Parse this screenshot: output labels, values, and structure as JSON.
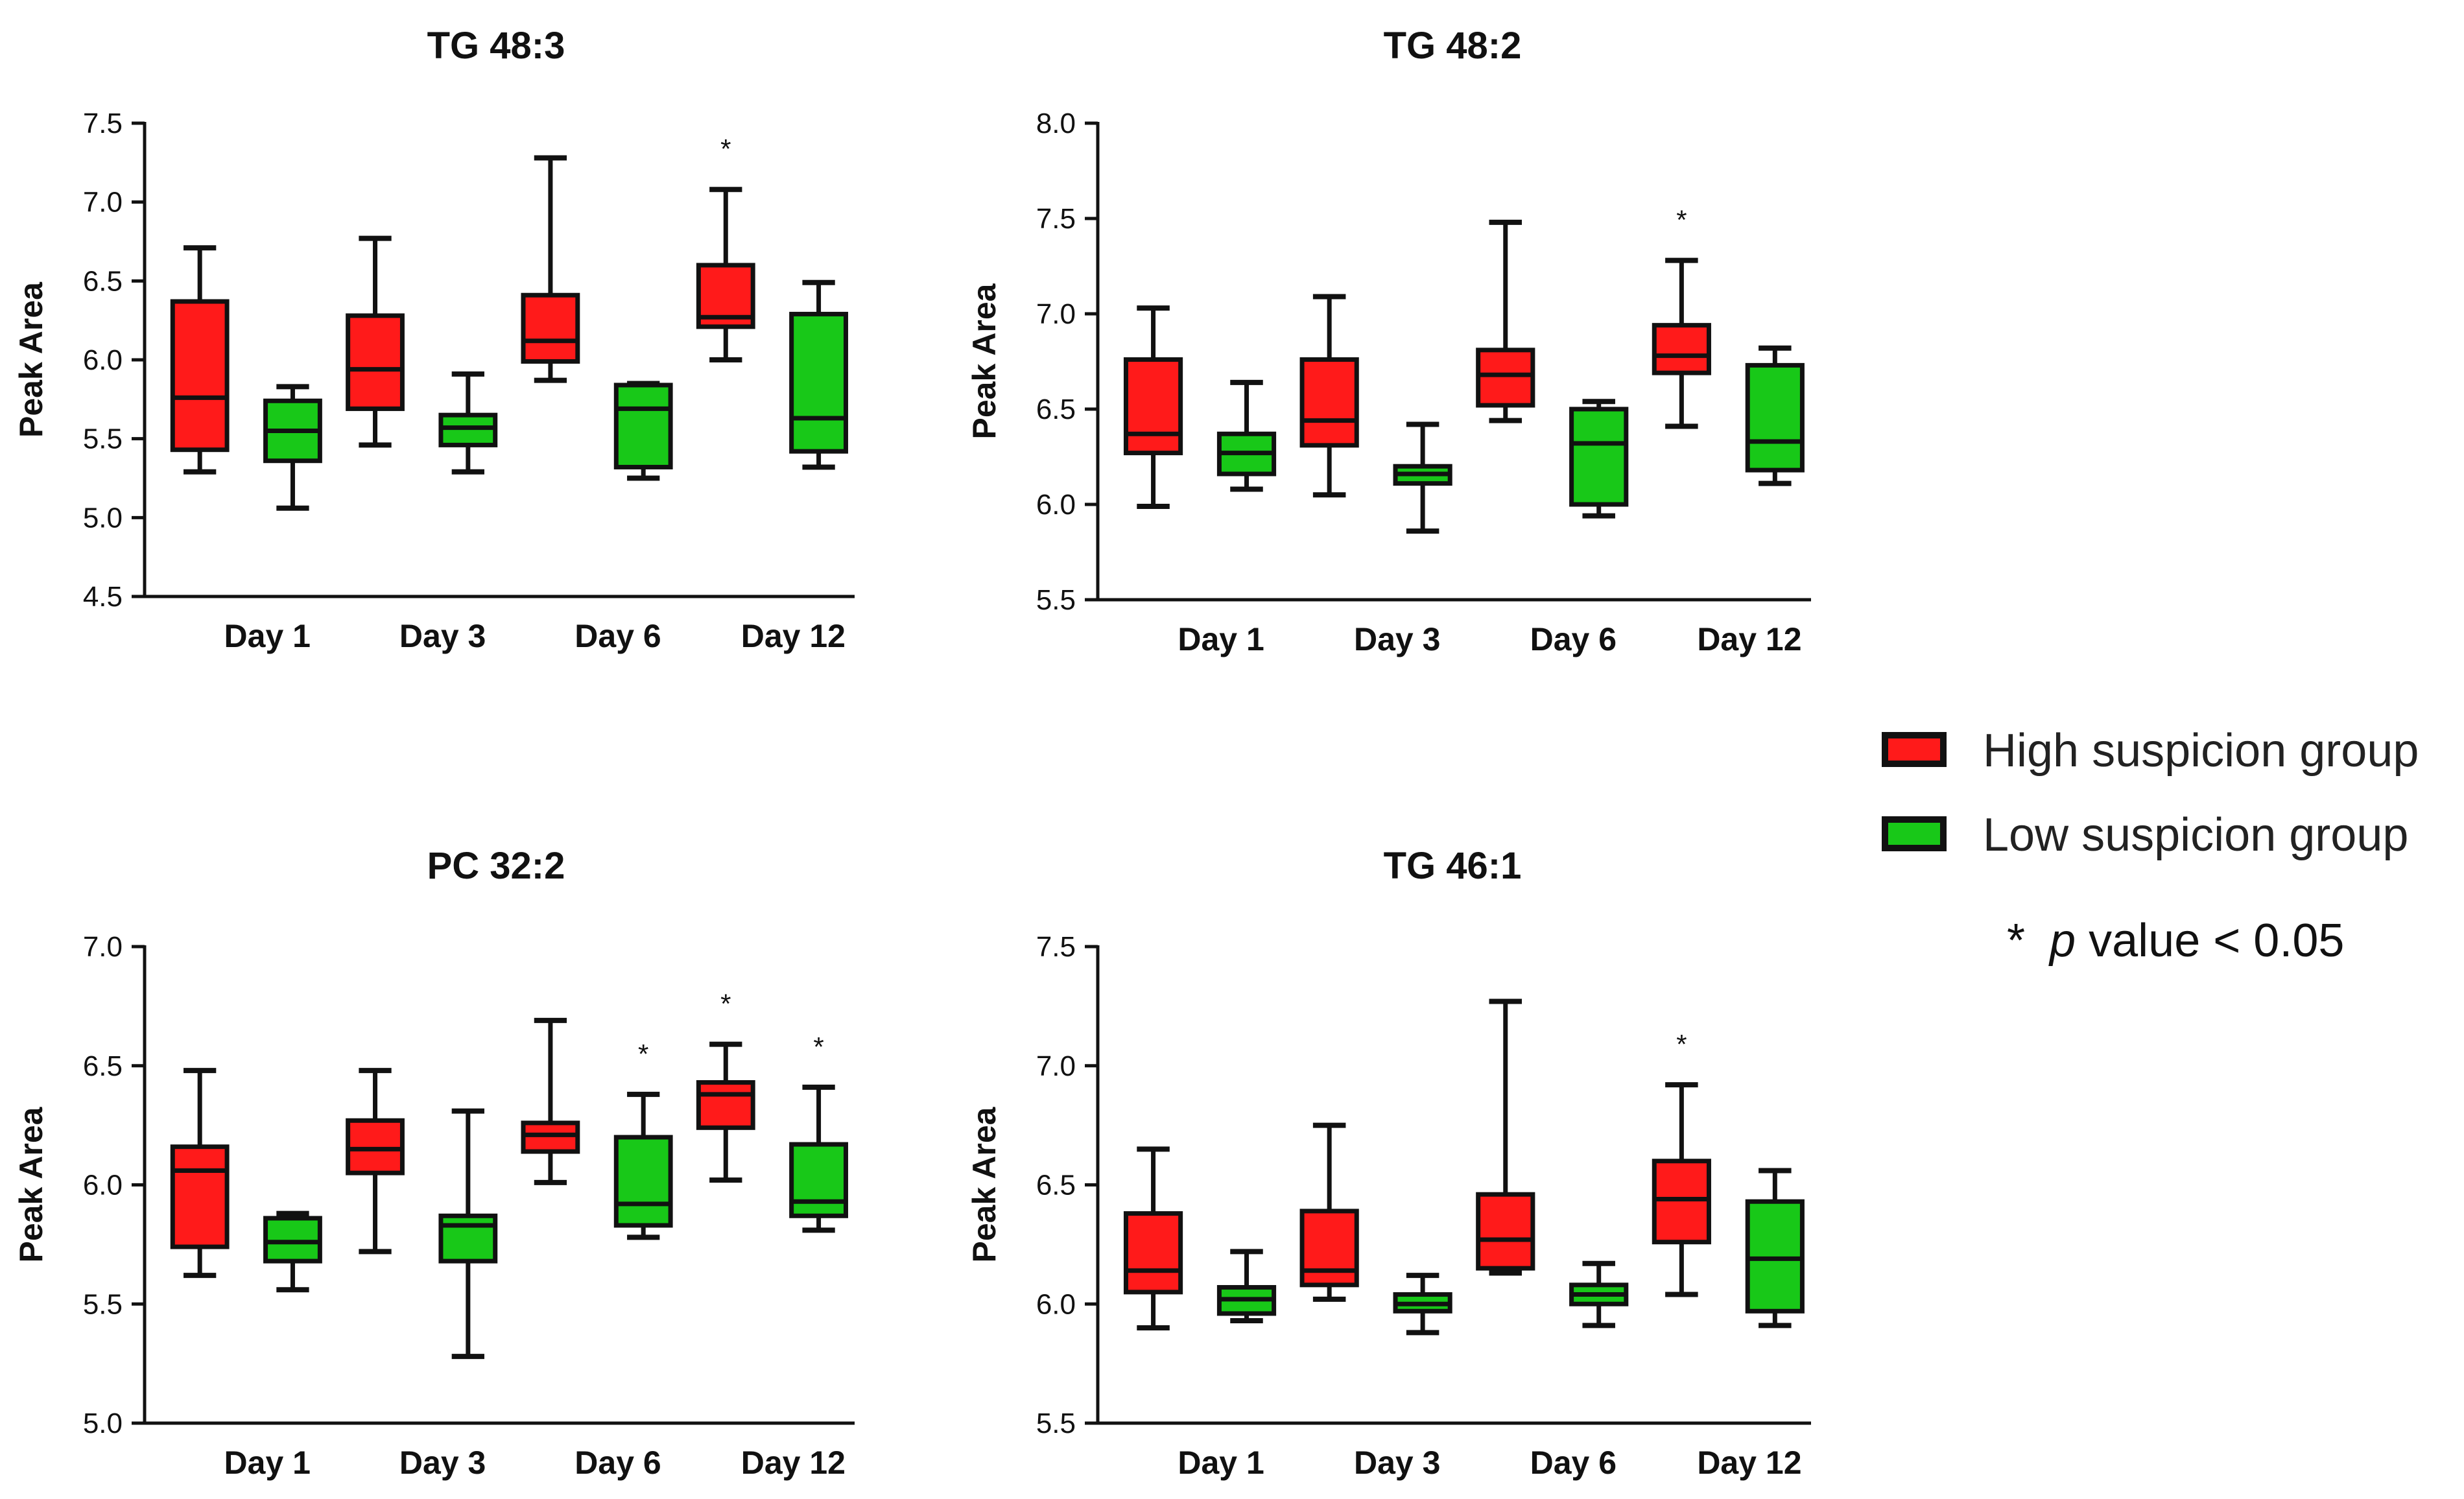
{
  "legend": {
    "items": [
      {
        "label": "High suspicion group",
        "color": "#ff1a1a"
      },
      {
        "label": "Low suspicion group",
        "color": "#18c818"
      }
    ],
    "note_star": "*",
    "note_p": "p",
    "note_rest": " value < 0.05"
  },
  "colors": {
    "high": "#ff1a1a",
    "low": "#18c818",
    "stroke": "#111111"
  },
  "chart_data": [
    {
      "type": "box",
      "title": "TG 48:3",
      "ylabel": "Peak Area",
      "ylim": [
        4.5,
        7.5
      ],
      "yticks": [
        "4.5",
        "5.0",
        "5.5",
        "6.0",
        "6.5",
        "7.0",
        "7.5"
      ],
      "categories": [
        "Day 1",
        "Day 3",
        "Day 6",
        "Day 12"
      ],
      "series": [
        {
          "group": "high",
          "boxes": [
            {
              "min": 5.29,
              "q1": 5.43,
              "median": 5.76,
              "q3": 6.37,
              "max": 6.71
            },
            {
              "min": 5.46,
              "q1": 5.69,
              "median": 5.94,
              "q3": 6.28,
              "max": 6.77
            },
            {
              "min": 5.87,
              "q1": 5.99,
              "median": 6.12,
              "q3": 6.41,
              "max": 7.28
            },
            {
              "min": 6.0,
              "q1": 6.21,
              "median": 6.27,
              "q3": 6.6,
              "max": 7.08
            }
          ]
        },
        {
          "group": "low",
          "boxes": [
            {
              "min": 5.06,
              "q1": 5.36,
              "median": 5.55,
              "q3": 5.74,
              "max": 5.83
            },
            {
              "min": 5.29,
              "q1": 5.46,
              "median": 5.57,
              "q3": 5.65,
              "max": 5.91
            },
            {
              "min": 5.25,
              "q1": 5.32,
              "median": 5.69,
              "q3": 5.84,
              "max": 5.85
            },
            {
              "min": 5.32,
              "q1": 5.42,
              "median": 5.63,
              "q3": 6.29,
              "max": 6.49
            }
          ]
        }
      ],
      "significance": [
        {
          "day": 3,
          "group": "high",
          "label": "*"
        }
      ]
    },
    {
      "type": "box",
      "title": "TG 48:2",
      "ylabel": "Peak Area",
      "ylim": [
        5.5,
        8.0
      ],
      "yticks": [
        "5.5",
        "6.0",
        "6.5",
        "7.0",
        "7.5",
        "8.0"
      ],
      "categories": [
        "Day 1",
        "Day 3",
        "Day 6",
        "Day 12"
      ],
      "series": [
        {
          "group": "high",
          "boxes": [
            {
              "min": 5.99,
              "q1": 6.27,
              "median": 6.37,
              "q3": 6.76,
              "max": 7.03
            },
            {
              "min": 6.05,
              "q1": 6.31,
              "median": 6.44,
              "q3": 6.76,
              "max": 7.09
            },
            {
              "min": 6.44,
              "q1": 6.52,
              "median": 6.68,
              "q3": 6.81,
              "max": 7.48
            },
            {
              "min": 6.41,
              "q1": 6.69,
              "median": 6.78,
              "q3": 6.94,
              "max": 7.28
            }
          ]
        },
        {
          "group": "low",
          "boxes": [
            {
              "min": 6.08,
              "q1": 6.16,
              "median": 6.27,
              "q3": 6.37,
              "max": 6.64
            },
            {
              "min": 5.86,
              "q1": 6.11,
              "median": 6.16,
              "q3": 6.2,
              "max": 6.42
            },
            {
              "min": 5.94,
              "q1": 6.0,
              "median": 6.32,
              "q3": 6.5,
              "max": 6.54
            },
            {
              "min": 6.11,
              "q1": 6.18,
              "median": 6.33,
              "q3": 6.73,
              "max": 6.82
            }
          ]
        }
      ],
      "significance": [
        {
          "day": 3,
          "group": "high",
          "label": "*"
        }
      ]
    },
    {
      "type": "box",
      "title": "PC 32:2",
      "ylabel": "Peak Area",
      "ylim": [
        5.0,
        7.0
      ],
      "yticks": [
        "5.0",
        "5.5",
        "6.0",
        "6.5",
        "7.0"
      ],
      "categories": [
        "Day 1",
        "Day 3",
        "Day 6",
        "Day 12"
      ],
      "series": [
        {
          "group": "high",
          "boxes": [
            {
              "min": 5.62,
              "q1": 5.74,
              "median": 6.06,
              "q3": 6.16,
              "max": 6.48
            },
            {
              "min": 5.72,
              "q1": 6.05,
              "median": 6.15,
              "q3": 6.27,
              "max": 6.48
            },
            {
              "min": 6.01,
              "q1": 6.14,
              "median": 6.21,
              "q3": 6.26,
              "max": 6.69
            },
            {
              "min": 6.02,
              "q1": 6.24,
              "median": 6.38,
              "q3": 6.43,
              "max": 6.59
            }
          ]
        },
        {
          "group": "low",
          "boxes": [
            {
              "min": 5.56,
              "q1": 5.68,
              "median": 5.76,
              "q3": 5.86,
              "max": 5.88
            },
            {
              "min": 5.28,
              "q1": 5.68,
              "median": 5.83,
              "q3": 5.87,
              "max": 6.31
            },
            {
              "min": 5.78,
              "q1": 5.83,
              "median": 5.92,
              "q3": 6.2,
              "max": 6.38
            },
            {
              "min": 5.81,
              "q1": 5.87,
              "median": 5.93,
              "q3": 6.17,
              "max": 6.41
            }
          ]
        }
      ],
      "significance": [
        {
          "day": 2,
          "group": "low",
          "label": "*"
        },
        {
          "day": 3,
          "group": "high",
          "label": "*"
        },
        {
          "day": 3,
          "group": "low",
          "label": "*"
        }
      ]
    },
    {
      "type": "box",
      "title": "TG 46:1",
      "ylabel": "Peak Area",
      "ylim": [
        5.5,
        7.5
      ],
      "yticks": [
        "5.5",
        "6.0",
        "6.5",
        "7.0",
        "7.5"
      ],
      "categories": [
        "Day 1",
        "Day 3",
        "Day 6",
        "Day 12"
      ],
      "series": [
        {
          "group": "high",
          "boxes": [
            {
              "min": 5.9,
              "q1": 6.05,
              "median": 6.14,
              "q3": 6.38,
              "max": 6.65
            },
            {
              "min": 6.02,
              "q1": 6.08,
              "median": 6.14,
              "q3": 6.39,
              "max": 6.75
            },
            {
              "min": 6.13,
              "q1": 6.15,
              "median": 6.27,
              "q3": 6.46,
              "max": 7.27
            },
            {
              "min": 6.04,
              "q1": 6.26,
              "median": 6.44,
              "q3": 6.6,
              "max": 6.92
            }
          ]
        },
        {
          "group": "low",
          "boxes": [
            {
              "min": 5.93,
              "q1": 5.96,
              "median": 6.02,
              "q3": 6.07,
              "max": 6.22
            },
            {
              "min": 5.88,
              "q1": 5.97,
              "median": 6.0,
              "q3": 6.04,
              "max": 6.12
            },
            {
              "min": 5.91,
              "q1": 6.0,
              "median": 6.04,
              "q3": 6.08,
              "max": 6.17
            },
            {
              "min": 5.91,
              "q1": 5.97,
              "median": 6.19,
              "q3": 6.43,
              "max": 6.56
            }
          ]
        }
      ],
      "significance": [
        {
          "day": 3,
          "group": "high",
          "label": "*"
        }
      ]
    }
  ]
}
